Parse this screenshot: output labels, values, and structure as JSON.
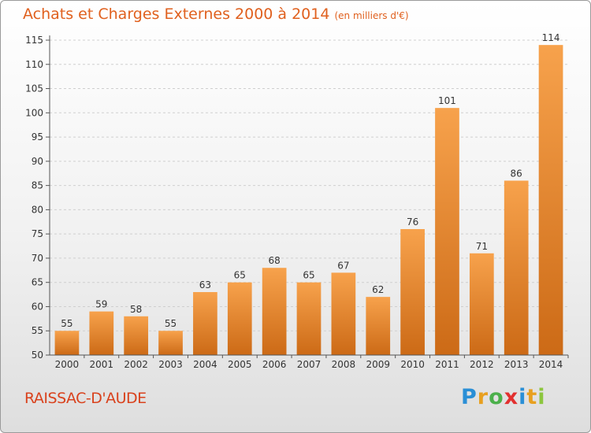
{
  "header": {
    "title": "Achats et Charges Externes 2000 à 2014",
    "unit": "(en milliers d'€)"
  },
  "footer": {
    "city": "RAISSAC-D'AUDE",
    "logo_letters": [
      "P",
      "r",
      "o",
      "x",
      "i",
      "t",
      "i"
    ]
  },
  "colors": {
    "bar_light": "#f7a24c",
    "bar_dark": "#cc6a16",
    "title": "#e0601e"
  },
  "chart_data": {
    "type": "bar",
    "title": "Achats et Charges Externes 2000 à 2014",
    "subtitle": "(en milliers d'€)",
    "categories": [
      "2000",
      "2001",
      "2002",
      "2003",
      "2004",
      "2005",
      "2006",
      "2007",
      "2008",
      "2009",
      "2010",
      "2011",
      "2012",
      "2013",
      "2014"
    ],
    "values": [
      55,
      59,
      58,
      55,
      63,
      65,
      68,
      65,
      67,
      62,
      76,
      101,
      71,
      86,
      114
    ],
    "ylim": [
      50,
      115
    ],
    "yticks": [
      50,
      55,
      60,
      65,
      70,
      75,
      80,
      85,
      90,
      95,
      100,
      105,
      110,
      115
    ],
    "grid": true,
    "legend": "none"
  }
}
